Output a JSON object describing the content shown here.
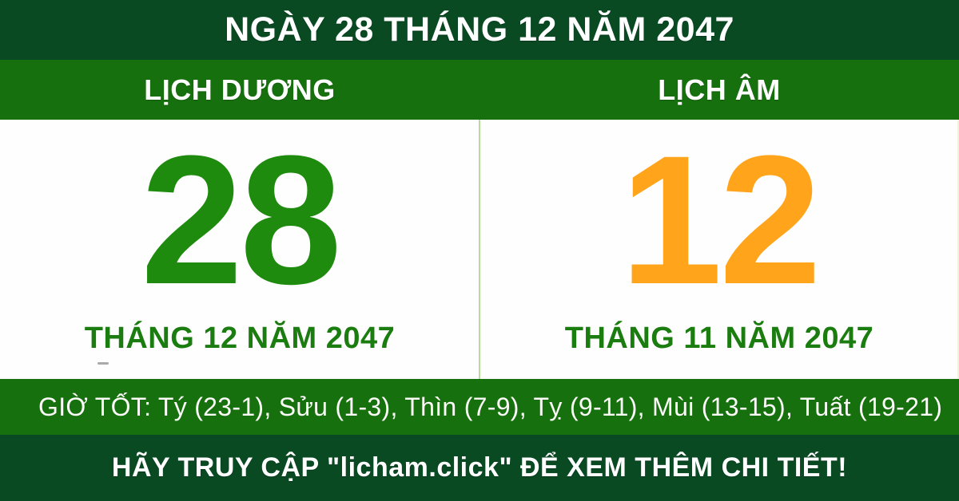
{
  "colors": {
    "dark-green": "#094a23",
    "mid-green": "#17700e",
    "day-green": "#1e8b0e",
    "day-orange": "#ffa41b",
    "label-green": "#1b7c10",
    "divider-green": "#b7dc99"
  },
  "header": {
    "title": "NGÀY 28 THÁNG 12 NĂM 2047"
  },
  "columns": {
    "solar": {
      "label": "LỊCH DƯƠNG",
      "day": "28",
      "day_color": "#1e8b0e",
      "month_year": "THÁNG 12 NĂM 2047"
    },
    "lunar": {
      "label": "LỊCH ÂM",
      "day": "12",
      "day_color": "#ffa41b",
      "month_year": "THÁNG 11 NĂM 2047"
    }
  },
  "good_hours": {
    "text": "GIỜ TỐT: Tý (23-1), Sửu (1-3), Thìn (7-9), Tỵ (9-11), Mùi (13-15), Tuất (19-21)"
  },
  "footer": {
    "text": "HÃY TRUY CẬP \"licham.click\" ĐỂ XEM THÊM CHI TIẾT!"
  }
}
